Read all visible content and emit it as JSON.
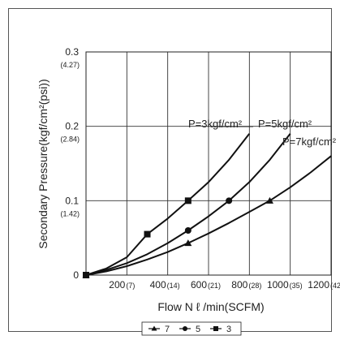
{
  "chart_data": {
    "type": "line",
    "title": "",
    "xlabel": "Flow N ℓ /min(SCFM)",
    "ylabel": "Secondary Pressure(kgf/cm²(psi))",
    "xlim": [
      0,
      1200
    ],
    "ylim": [
      0,
      0.3
    ],
    "grid": true,
    "x_ticks": [
      {
        "value": 200,
        "label": "200",
        "sub": "(7)"
      },
      {
        "value": 400,
        "label": "400",
        "sub": "(14)"
      },
      {
        "value": 600,
        "label": "600",
        "sub": "(21)"
      },
      {
        "value": 800,
        "label": "800",
        "sub": "(28)"
      },
      {
        "value": 1000,
        "label": "1000",
        "sub": "(35)"
      },
      {
        "value": 1200,
        "label": "1200",
        "sub": "(42)"
      }
    ],
    "y_ticks": [
      {
        "value": 0,
        "label": "0",
        "sub": ""
      },
      {
        "value": 0.1,
        "label": "0.1",
        "sub": "(1.42)"
      },
      {
        "value": 0.2,
        "label": "0.2",
        "sub": "(2.84)"
      },
      {
        "value": 0.3,
        "label": "0.3",
        "sub": "(4.27)"
      }
    ],
    "series": [
      {
        "name": "3",
        "marker": "square",
        "annotation": "P=3kgf/cm²",
        "points": [
          [
            0,
            0
          ],
          [
            300,
            0.055
          ],
          [
            500,
            0.1
          ]
        ],
        "curve": [
          [
            0,
            0
          ],
          [
            100,
            0.009
          ],
          [
            200,
            0.024
          ],
          [
            300,
            0.055
          ],
          [
            400,
            0.076
          ],
          [
            500,
            0.1
          ],
          [
            600,
            0.125
          ],
          [
            700,
            0.155
          ],
          [
            800,
            0.19
          ]
        ]
      },
      {
        "name": "5",
        "marker": "circle",
        "annotation": "P=5kgf/cm²",
        "points": [
          [
            0,
            0
          ],
          [
            500,
            0.06
          ],
          [
            700,
            0.1
          ]
        ],
        "curve": [
          [
            0,
            0
          ],
          [
            100,
            0.007
          ],
          [
            200,
            0.016
          ],
          [
            300,
            0.028
          ],
          [
            400,
            0.043
          ],
          [
            500,
            0.06
          ],
          [
            600,
            0.079
          ],
          [
            700,
            0.1
          ],
          [
            800,
            0.125
          ],
          [
            900,
            0.155
          ],
          [
            1000,
            0.19
          ]
        ]
      },
      {
        "name": "7",
        "marker": "triangle",
        "annotation": "P=7kgf/cm²",
        "points": [
          [
            0,
            0
          ],
          [
            500,
            0.043
          ],
          [
            900,
            0.1
          ]
        ],
        "curve": [
          [
            0,
            0
          ],
          [
            100,
            0.005
          ],
          [
            200,
            0.012
          ],
          [
            300,
            0.021
          ],
          [
            400,
            0.031
          ],
          [
            500,
            0.043
          ],
          [
            600,
            0.056
          ],
          [
            700,
            0.07
          ],
          [
            800,
            0.085
          ],
          [
            900,
            0.1
          ],
          [
            1000,
            0.118
          ],
          [
            1100,
            0.138
          ],
          [
            1200,
            0.16
          ]
        ]
      }
    ],
    "legend": {
      "placement": "bottom",
      "items": [
        {
          "marker": "triangle",
          "label": "7"
        },
        {
          "marker": "circle",
          "label": "5"
        },
        {
          "marker": "square",
          "label": "3"
        }
      ]
    }
  }
}
